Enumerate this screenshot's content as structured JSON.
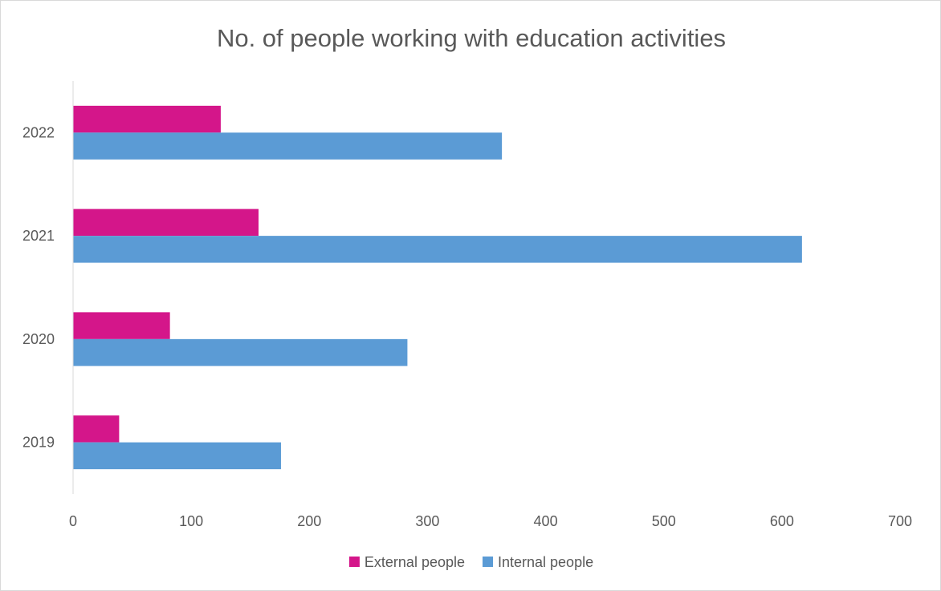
{
  "chart_data": {
    "type": "bar",
    "orientation": "horizontal",
    "title": "No. of people working with education activities",
    "xlabel": "",
    "ylabel": "",
    "categories": [
      "2019",
      "2020",
      "2021",
      "2022"
    ],
    "series": [
      {
        "name": "External people",
        "color": "#d4168a",
        "values": [
          39,
          82,
          157,
          125
        ]
      },
      {
        "name": "Internal people",
        "color": "#5b9bd5",
        "values": [
          176,
          283,
          617,
          363
        ]
      }
    ],
    "xlim": [
      0,
      700
    ],
    "x_ticks": [
      "0",
      "100",
      "200",
      "300",
      "400",
      "500",
      "600",
      "700"
    ],
    "grid": false,
    "legend_position": "bottom"
  }
}
